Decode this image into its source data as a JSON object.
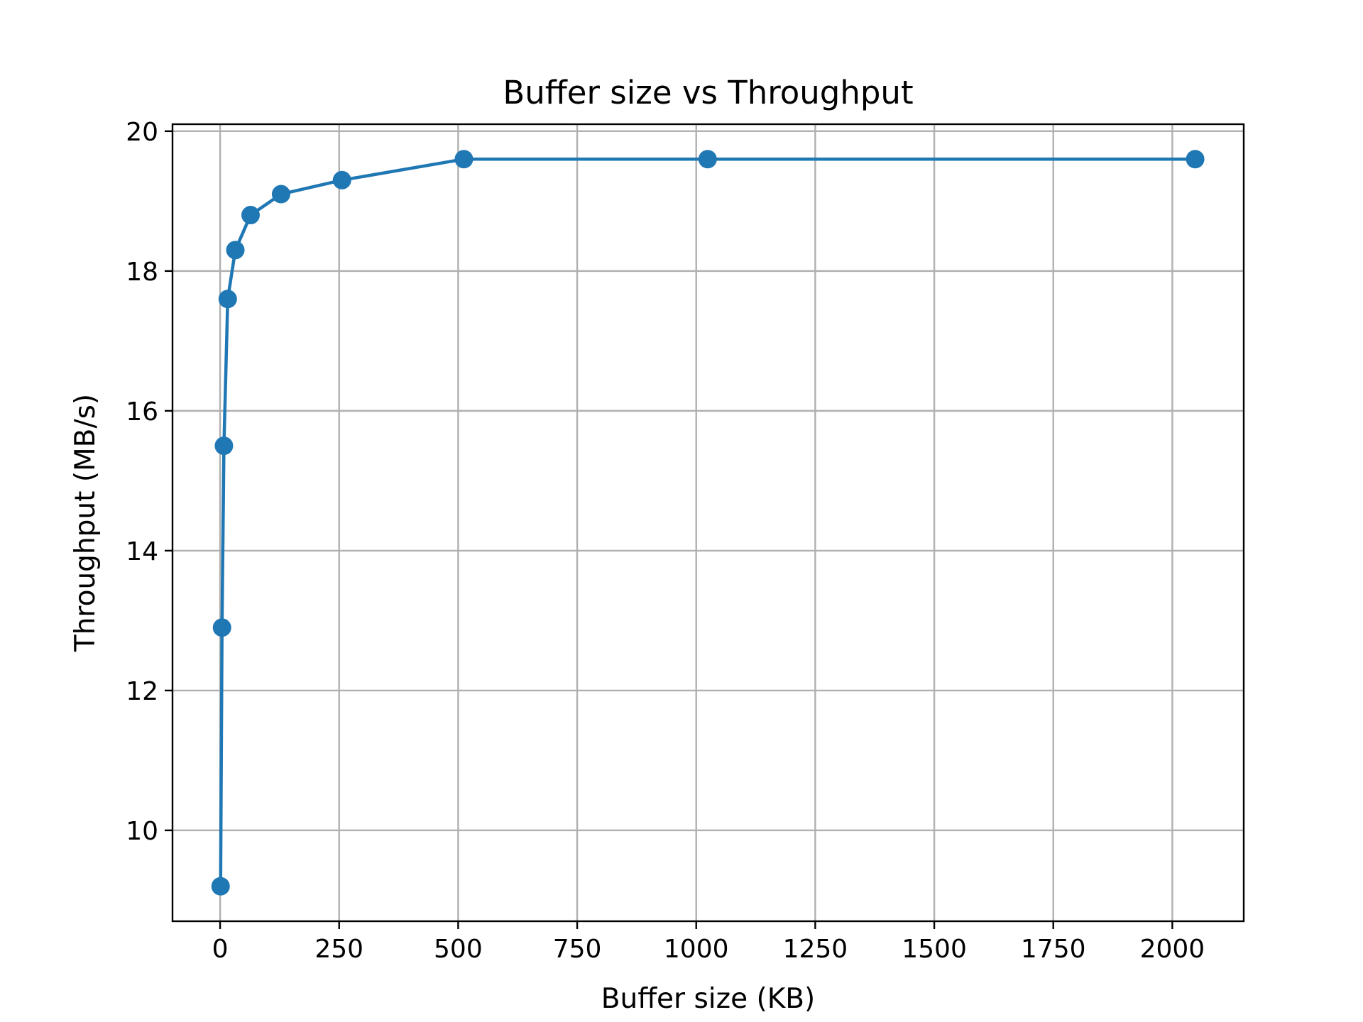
{
  "chart_data": {
    "type": "line",
    "title": "Buffer size vs Throughput",
    "xlabel": "Buffer size (KB)",
    "ylabel": "Throughput (MB/s)",
    "xlim": [
      -100,
      2150
    ],
    "ylim": [
      8.7,
      20.1
    ],
    "xticks": [
      0,
      250,
      500,
      750,
      1000,
      1250,
      1500,
      1750,
      2000
    ],
    "yticks": [
      10,
      12,
      14,
      16,
      18,
      20
    ],
    "grid": true,
    "series": [
      {
        "color": "#1f77b4",
        "marker": "circle",
        "x": [
          1,
          4,
          8,
          16,
          32,
          64,
          128,
          256,
          512,
          1024,
          2048
        ],
        "y": [
          9.2,
          12.9,
          15.5,
          17.6,
          18.3,
          18.8,
          19.1,
          19.3,
          19.6,
          19.6,
          19.6
        ]
      }
    ]
  }
}
